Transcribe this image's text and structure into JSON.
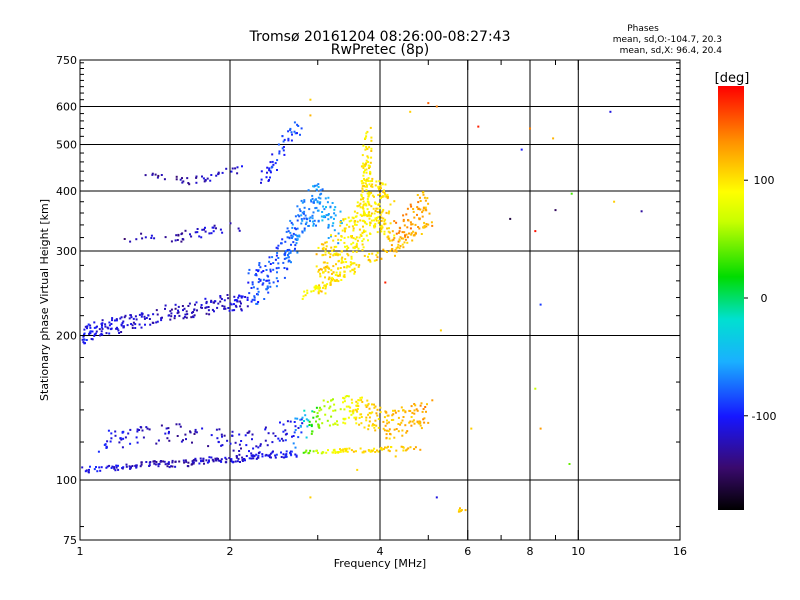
{
  "header": {
    "title": "Tromsø 20161204 08:26:00-08:27:43",
    "subtitle": "RwPretec (8p)",
    "phases_title": "Phases",
    "phases_o": "mean, sd,O:-104.7, 20.3",
    "phases_x": "mean, sd,X:  96.4, 20.4"
  },
  "colorbar": {
    "label": "[deg]",
    "min": -180,
    "max": 180,
    "ticks": [
      100,
      0,
      -100
    ],
    "tick_labels": [
      "100",
      "0",
      "-100"
    ]
  },
  "chart_data": {
    "type": "scatter",
    "xlabel": "Frequency [MHz]",
    "ylabel": "Stationary phase Virtual Height [km]",
    "xscale": "log",
    "yscale": "log",
    "xlim": [
      1,
      16
    ],
    "ylim": [
      75,
      750
    ],
    "xticks": [
      1,
      2,
      4,
      6,
      8,
      10,
      16
    ],
    "xtick_labels": [
      "1",
      "2",
      "4",
      "6",
      "8",
      "10",
      "16"
    ],
    "xgrid": [
      2,
      4,
      6,
      8,
      10
    ],
    "xminor": [
      3,
      5,
      7,
      9
    ],
    "yticks": [
      75,
      100,
      200,
      300,
      400,
      500,
      600,
      750
    ],
    "ytick_labels": [
      "75",
      "100",
      "200",
      "300",
      "400",
      "500",
      "600",
      "750"
    ],
    "ygrid": [
      100,
      200,
      300,
      400,
      500,
      600
    ],
    "grid": true,
    "color_encoding": "phase_deg",
    "traces": [
      {
        "name": "",
        "x": [
          1.0,
          1.1,
          1.25,
          1.4,
          1.6,
          1.8,
          2.0,
          2.15
        ],
        "y": [
          197,
          208,
          212,
          220,
          225,
          230,
          235,
          232
        ],
        "phase": [
          -100,
          -110,
          -115,
          -120,
          -125,
          -120,
          -115,
          -110
        ],
        "spread": 0.04,
        "n": 220
      },
      {
        "name": "",
        "x": [
          1.25,
          1.4,
          1.6,
          1.8,
          2.0,
          2.15
        ],
        "y": [
          318,
          325,
          320,
          330,
          336,
          340
        ],
        "phase": [
          -130,
          -120,
          -125,
          -115,
          -120,
          -110
        ],
        "spread": 0.025,
        "n": 45
      },
      {
        "name": "",
        "x": [
          1.35,
          1.5,
          1.7,
          1.9,
          2.1
        ],
        "y": [
          430,
          425,
          420,
          432,
          450
        ],
        "phase": [
          -135,
          -130,
          -125,
          -120,
          -115
        ],
        "spread": 0.02,
        "n": 40
      },
      {
        "name": "",
        "x": [
          2.3,
          2.45,
          2.6,
          2.75
        ],
        "y": [
          410,
          450,
          520,
          545
        ],
        "phase": [
          -100,
          -95,
          -90,
          -88
        ],
        "spread": 0.04,
        "n": 50
      },
      {
        "name": "",
        "x": [
          2.2,
          2.4,
          2.6,
          2.8,
          3.0,
          3.3
        ],
        "y": [
          250,
          265,
          300,
          350,
          380,
          330
        ],
        "phase": [
          -90,
          -85,
          -80,
          -70,
          -60,
          -50
        ],
        "spread": 0.09,
        "n": 260
      },
      {
        "name": "",
        "x": [
          3.0,
          3.3,
          3.6,
          3.9,
          4.2
        ],
        "y": [
          270,
          300,
          330,
          380,
          350
        ],
        "phase": [
          110,
          100,
          95,
          100,
          105
        ],
        "spread": 0.12,
        "n": 330
      },
      {
        "name": "",
        "x": [
          3.7,
          3.75,
          3.8
        ],
        "y": [
          350,
          430,
          520
        ],
        "phase": [
          95,
          100,
          98
        ],
        "spread": 0.09,
        "n": 100
      },
      {
        "name": "",
        "x": [
          4.2,
          4.5,
          4.8,
          5.0
        ],
        "y": [
          310,
          340,
          365,
          385
        ],
        "phase": [
          130,
          135,
          125,
          120
        ],
        "spread": 0.07,
        "n": 70
      },
      {
        "name": "",
        "x": [
          2.8,
          3.0,
          3.3,
          3.6,
          3.9,
          4.2,
          4.6,
          5.0
        ],
        "y": [
          243,
          250,
          265,
          280,
          292,
          300,
          320,
          345
        ],
        "phase": [
          90,
          95,
          100,
          105,
          110,
          115,
          120,
          125
        ],
        "spread": 0.025,
        "n": 120
      },
      {
        "name": "",
        "x": [
          1.0,
          1.2,
          1.4,
          1.6,
          1.8,
          2.0,
          2.2,
          2.4,
          2.7
        ],
        "y": [
          105,
          106,
          108,
          108,
          110,
          110,
          112,
          113,
          113
        ],
        "phase": [
          -105,
          -110,
          -120,
          -125,
          -118,
          -115,
          -110,
          -105,
          -100
        ],
        "spread": 0.015,
        "n": 200
      },
      {
        "name": "",
        "x": [
          1.1,
          1.3,
          1.6,
          1.9,
          2.2,
          2.5,
          2.8
        ],
        "y": [
          120,
          125,
          125,
          122,
          120,
          125,
          128
        ],
        "phase": [
          -100,
          -115,
          -125,
          -120,
          -115,
          -105,
          -100
        ],
        "spread": 0.05,
        "n": 130
      },
      {
        "name": "",
        "x": [
          2.8,
          3.1,
          3.4,
          3.7,
          4.0,
          4.4,
          4.8
        ],
        "y": [
          115,
          115,
          115,
          115,
          116,
          116,
          116
        ],
        "phase": [
          20,
          80,
          100,
          110,
          105,
          110,
          120
        ],
        "spread": 0.012,
        "n": 80
      },
      {
        "name": "",
        "x": [
          2.7,
          3.0,
          3.3,
          3.6,
          3.9,
          4.2,
          4.6,
          5.0
        ],
        "y": [
          125,
          135,
          140,
          140,
          135,
          130,
          135,
          138
        ],
        "phase": [
          -80,
          40,
          70,
          100,
          110,
          115,
          120,
          130
        ],
        "spread": 0.07,
        "n": 240
      },
      {
        "name": "",
        "x": [
          5.7,
          5.85
        ],
        "y": [
          86,
          87
        ],
        "phase": [
          110,
          105
        ],
        "spread": 0.01,
        "n": 8
      }
    ],
    "scatter": [
      {
        "x": 6.3,
        "y": 545,
        "phase": 170
      },
      {
        "x": 7.7,
        "y": 488,
        "phase": -100
      },
      {
        "x": 8.9,
        "y": 515,
        "phase": 120
      },
      {
        "x": 8.0,
        "y": 540,
        "phase": 140
      },
      {
        "x": 7.3,
        "y": 350,
        "phase": -160
      },
      {
        "x": 8.2,
        "y": 330,
        "phase": 175
      },
      {
        "x": 8.4,
        "y": 232,
        "phase": -90
      },
      {
        "x": 9.0,
        "y": 365,
        "phase": -150
      },
      {
        "x": 9.7,
        "y": 395,
        "phase": 20
      },
      {
        "x": 11.6,
        "y": 585,
        "phase": -110
      },
      {
        "x": 11.8,
        "y": 380,
        "phase": 110
      },
      {
        "x": 13.4,
        "y": 363,
        "phase": -130
      },
      {
        "x": 9.6,
        "y": 108,
        "phase": 30
      },
      {
        "x": 8.4,
        "y": 128,
        "phase": 130
      },
      {
        "x": 8.2,
        "y": 155,
        "phase": 60
      },
      {
        "x": 6.1,
        "y": 128,
        "phase": 110
      },
      {
        "x": 5.0,
        "y": 610,
        "phase": 150
      },
      {
        "x": 5.2,
        "y": 600,
        "phase": 140
      },
      {
        "x": 4.6,
        "y": 585,
        "phase": 110
      },
      {
        "x": 2.9,
        "y": 620,
        "phase": 110
      },
      {
        "x": 2.9,
        "y": 575,
        "phase": 120
      },
      {
        "x": 2.9,
        "y": 92,
        "phase": 110
      },
      {
        "x": 5.2,
        "y": 92,
        "phase": -110
      },
      {
        "x": 5.3,
        "y": 205,
        "phase": 110
      },
      {
        "x": 4.1,
        "y": 258,
        "phase": 170
      },
      {
        "x": 3.6,
        "y": 105,
        "phase": 105
      },
      {
        "x": 4.3,
        "y": 112,
        "phase": 110
      }
    ]
  }
}
